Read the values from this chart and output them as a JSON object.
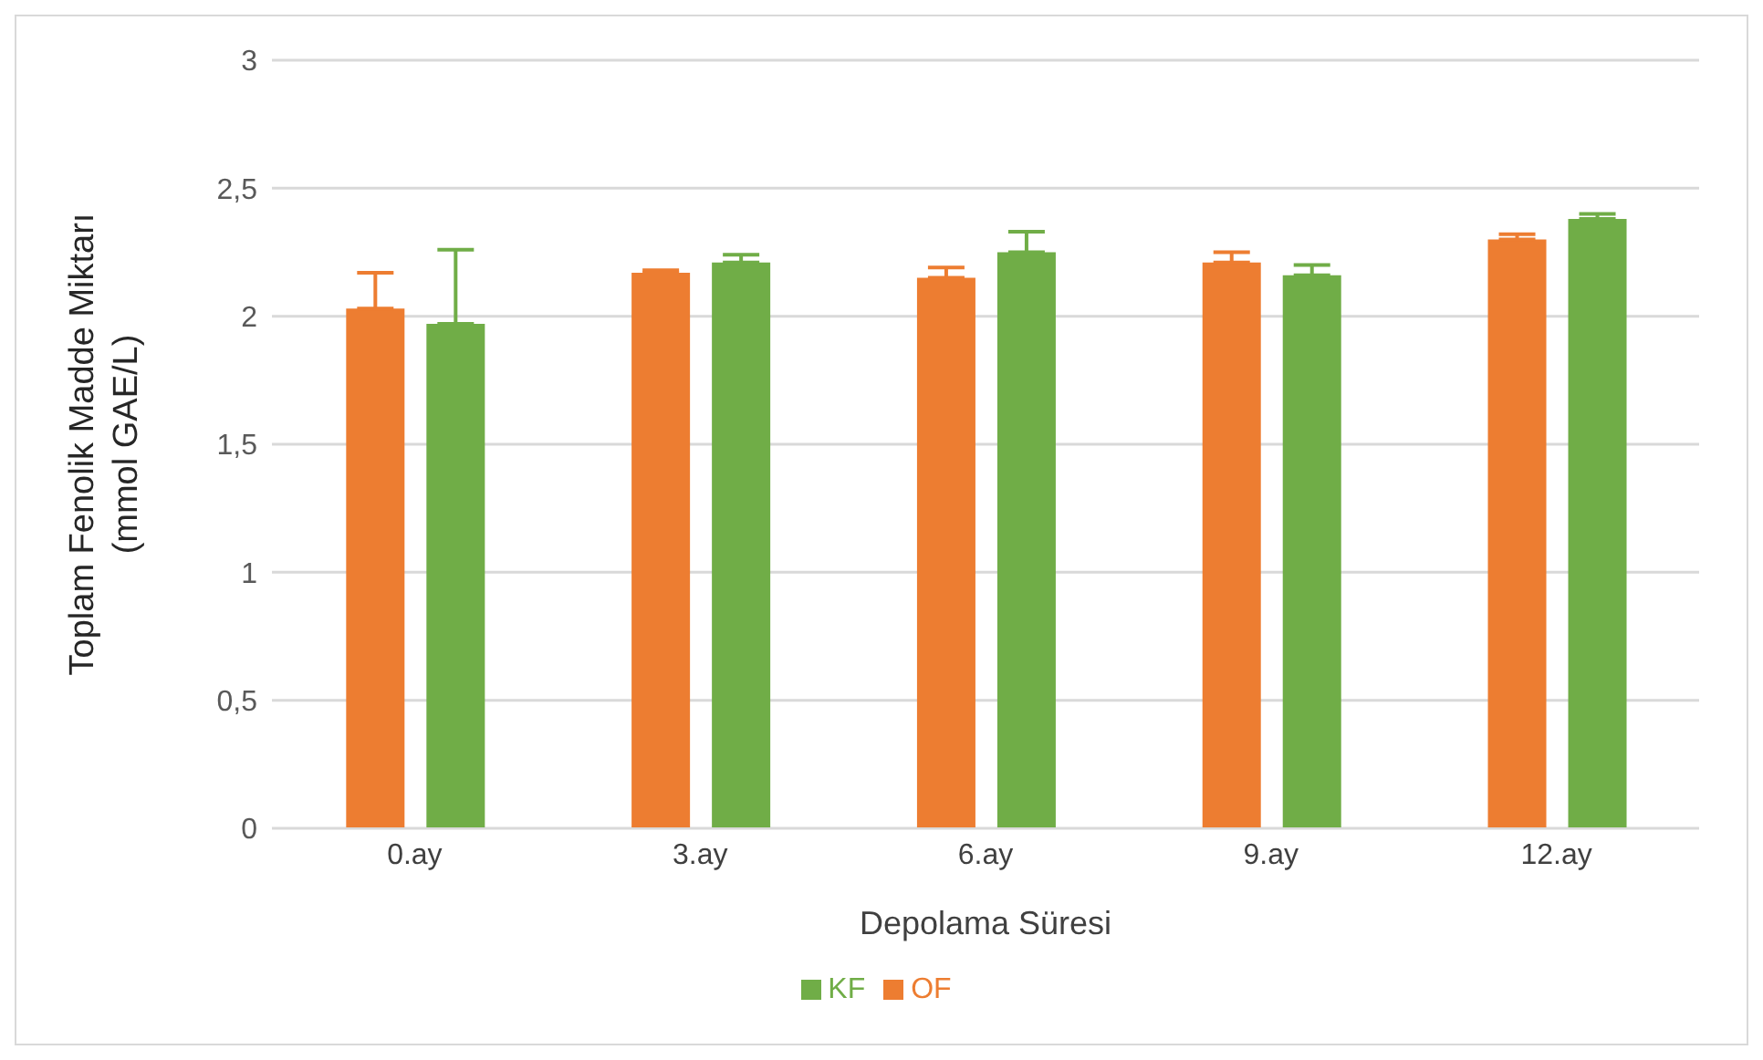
{
  "chart_data": {
    "type": "bar",
    "xlabel": "Depolama Süresi",
    "ylabel": "Toplam Fenolik Madde Miktarı (mmol GAE/L)",
    "categories": [
      "0.ay",
      "3.ay",
      "6.ay",
      "9.ay",
      "12.ay"
    ],
    "series": [
      {
        "name": "OF",
        "color": "#ed7d31",
        "values": [
          2.03,
          2.17,
          2.15,
          2.21,
          2.3
        ],
        "errors": [
          [
            2.03,
            2.17
          ],
          [
            2.17,
            2.18
          ],
          [
            2.15,
            2.19
          ],
          [
            2.21,
            2.25
          ],
          [
            2.3,
            2.32
          ]
        ]
      },
      {
        "name": "KF",
        "color": "#70ad47",
        "values": [
          1.97,
          2.21,
          2.25,
          2.16,
          2.38
        ],
        "errors": [
          [
            1.97,
            2.26
          ],
          [
            2.21,
            2.24
          ],
          [
            2.25,
            2.33
          ],
          [
            2.16,
            2.2
          ],
          [
            2.38,
            2.4
          ]
        ]
      }
    ],
    "ylim": [
      0,
      3
    ],
    "yticks": [
      {
        "value": 0,
        "label": "0"
      },
      {
        "value": 0.5,
        "label": "0,5"
      },
      {
        "value": 1,
        "label": "1"
      },
      {
        "value": 1.5,
        "label": "1,5"
      },
      {
        "value": 2,
        "label": "2"
      },
      {
        "value": 2.5,
        "label": "2,5"
      },
      {
        "value": 3,
        "label": "3"
      }
    ],
    "grid": "y",
    "legend": "bottom"
  }
}
